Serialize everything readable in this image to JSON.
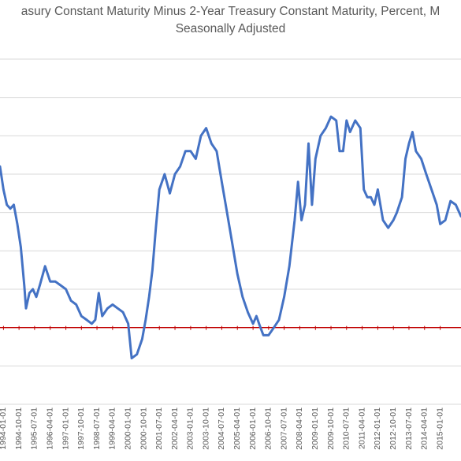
{
  "chart_data": {
    "type": "line",
    "title_lines": [
      "asury Constant Maturity Minus 2-Year Treasury Constant Maturity, Percent, M",
      "Seasonally Adjusted"
    ],
    "xlabel": "",
    "ylabel": "",
    "grid": true,
    "colors": {
      "line": "#4472C4",
      "reference": "#C00000",
      "grid": "#D9D9D9",
      "tick_text": "#595959"
    },
    "ylim": [
      -1,
      3.5
    ],
    "xlim": [
      "1993-11-01",
      "2016-01-01"
    ],
    "reference_line": 0,
    "x_tick_labels": [
      "1994-01-01",
      "1994-10-01",
      "1995-07-01",
      "1996-04-01",
      "1997-01-01",
      "1997-10-01",
      "1998-07-01",
      "1999-04-01",
      "2000-01-01",
      "2000-10-01",
      "2001-07-01",
      "2002-04-01",
      "2003-01-01",
      "2003-10-01",
      "2004-07-01",
      "2005-04-01",
      "2006-01-01",
      "2006-10-01",
      "2007-07-01",
      "2008-04-01",
      "2009-01-01",
      "2009-10-01",
      "2010-07-01",
      "2011-04-01",
      "2012-01-01",
      "2012-10-01",
      "2013-07-01",
      "2014-04-01",
      "2015-01-01"
    ],
    "series": [
      {
        "points": [
          [
            "1993-11-01",
            2.1
          ],
          [
            "1994-01-01",
            1.8
          ],
          [
            "1994-03-01",
            1.6
          ],
          [
            "1994-05-01",
            1.55
          ],
          [
            "1994-07-01",
            1.6
          ],
          [
            "1994-09-01",
            1.35
          ],
          [
            "1994-11-01",
            1.05
          ],
          [
            "1995-01-01",
            0.55
          ],
          [
            "1995-02-01",
            0.25
          ],
          [
            "1995-04-01",
            0.45
          ],
          [
            "1995-06-01",
            0.5
          ],
          [
            "1995-08-01",
            0.4
          ],
          [
            "1995-10-01",
            0.55
          ],
          [
            "1996-01-01",
            0.8
          ],
          [
            "1996-04-01",
            0.6
          ],
          [
            "1996-07-01",
            0.6
          ],
          [
            "1996-10-01",
            0.55
          ],
          [
            "1997-01-01",
            0.5
          ],
          [
            "1997-04-01",
            0.35
          ],
          [
            "1997-07-01",
            0.3
          ],
          [
            "1997-10-01",
            0.15
          ],
          [
            "1998-01-01",
            0.1
          ],
          [
            "1998-04-01",
            0.05
          ],
          [
            "1998-06-01",
            0.1
          ],
          [
            "1998-08-01",
            0.45
          ],
          [
            "1998-10-01",
            0.15
          ],
          [
            "1999-01-01",
            0.25
          ],
          [
            "1999-04-01",
            0.3
          ],
          [
            "1999-07-01",
            0.25
          ],
          [
            "1999-10-01",
            0.2
          ],
          [
            "2000-01-01",
            0.05
          ],
          [
            "2000-03-01",
            -0.4
          ],
          [
            "2000-06-01",
            -0.35
          ],
          [
            "2000-09-01",
            -0.15
          ],
          [
            "2000-11-01",
            0.1
          ],
          [
            "2001-01-01",
            0.4
          ],
          [
            "2001-03-01",
            0.75
          ],
          [
            "2001-05-01",
            1.3
          ],
          [
            "2001-07-01",
            1.8
          ],
          [
            "2001-10-01",
            2.0
          ],
          [
            "2002-01-01",
            1.75
          ],
          [
            "2002-04-01",
            2.0
          ],
          [
            "2002-07-01",
            2.1
          ],
          [
            "2002-10-01",
            2.3
          ],
          [
            "2003-01-01",
            2.3
          ],
          [
            "2003-04-01",
            2.2
          ],
          [
            "2003-07-01",
            2.5
          ],
          [
            "2003-10-01",
            2.6
          ],
          [
            "2004-01-01",
            2.4
          ],
          [
            "2004-04-01",
            2.3
          ],
          [
            "2004-07-01",
            1.9
          ],
          [
            "2004-10-01",
            1.5
          ],
          [
            "2005-01-01",
            1.1
          ],
          [
            "2005-04-01",
            0.7
          ],
          [
            "2005-07-01",
            0.4
          ],
          [
            "2005-10-01",
            0.2
          ],
          [
            "2006-01-01",
            0.05
          ],
          [
            "2006-03-01",
            0.15
          ],
          [
            "2006-05-01",
            0.02
          ],
          [
            "2006-07-01",
            -0.1
          ],
          [
            "2006-10-01",
            -0.1
          ],
          [
            "2007-01-01",
            0.0
          ],
          [
            "2007-04-01",
            0.1
          ],
          [
            "2007-07-01",
            0.4
          ],
          [
            "2007-10-01",
            0.8
          ],
          [
            "2008-01-01",
            1.4
          ],
          [
            "2008-03-01",
            1.9
          ],
          [
            "2008-05-01",
            1.4
          ],
          [
            "2008-07-01",
            1.6
          ],
          [
            "2008-09-01",
            2.4
          ],
          [
            "2008-11-01",
            1.6
          ],
          [
            "2009-01-01",
            2.2
          ],
          [
            "2009-04-01",
            2.5
          ],
          [
            "2009-07-01",
            2.6
          ],
          [
            "2009-10-01",
            2.75
          ],
          [
            "2010-01-01",
            2.7
          ],
          [
            "2010-03-01",
            2.3
          ],
          [
            "2010-05-01",
            2.3
          ],
          [
            "2010-07-01",
            2.7
          ],
          [
            "2010-09-01",
            2.55
          ],
          [
            "2010-12-01",
            2.7
          ],
          [
            "2011-03-01",
            2.6
          ],
          [
            "2011-05-01",
            1.8
          ],
          [
            "2011-07-01",
            1.7
          ],
          [
            "2011-09-01",
            1.7
          ],
          [
            "2011-11-01",
            1.6
          ],
          [
            "2012-01-01",
            1.8
          ],
          [
            "2012-04-01",
            1.4
          ],
          [
            "2012-07-01",
            1.3
          ],
          [
            "2012-10-01",
            1.4
          ],
          [
            "2012-12-01",
            1.5
          ],
          [
            "2013-03-01",
            1.7
          ],
          [
            "2013-05-01",
            2.2
          ],
          [
            "2013-07-01",
            2.4
          ],
          [
            "2013-09-01",
            2.55
          ],
          [
            "2013-11-01",
            2.3
          ],
          [
            "2014-02-01",
            2.2
          ],
          [
            "2014-05-01",
            2.0
          ],
          [
            "2014-08-01",
            1.8
          ],
          [
            "2014-11-01",
            1.6
          ],
          [
            "2015-01-01",
            1.35
          ],
          [
            "2015-04-01",
            1.4
          ],
          [
            "2015-07-01",
            1.65
          ],
          [
            "2015-10-01",
            1.6
          ],
          [
            "2016-01-01",
            1.45
          ]
        ]
      }
    ]
  }
}
